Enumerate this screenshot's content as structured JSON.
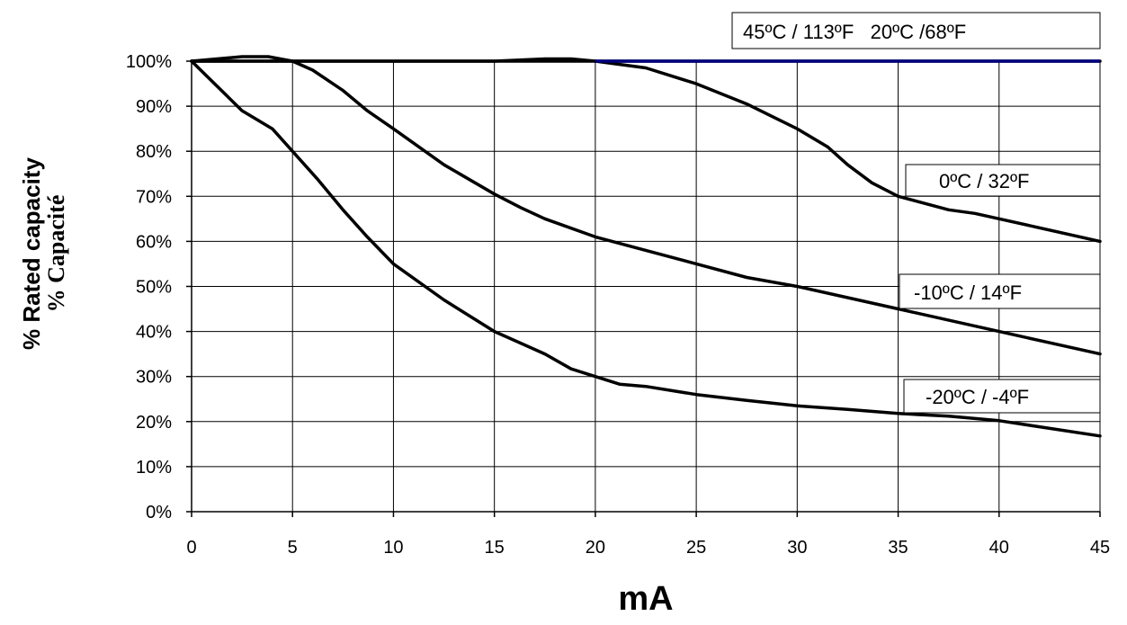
{
  "chart_data": {
    "type": "line",
    "xlabel": "mA",
    "ylabel": [
      "% Rated capacity",
      "% Capacité"
    ],
    "xlim": [
      0,
      45
    ],
    "ylim": [
      0,
      100
    ],
    "x_ticks": [
      0,
      5,
      10,
      15,
      20,
      25,
      30,
      35,
      40,
      45
    ],
    "y_ticks": [
      "0%",
      "10%",
      "20%",
      "30%",
      "40%",
      "50%",
      "60%",
      "70%",
      "80%",
      "90%",
      "100%"
    ],
    "grid": true,
    "series": [
      {
        "name": "45ºC / 113ºF   20ºC /68ºF",
        "color": "#000080",
        "points": [
          [
            0,
            100
          ],
          [
            2.5,
            101
          ],
          [
            3.8,
            101
          ],
          [
            5,
            100
          ],
          [
            10,
            100
          ],
          [
            15,
            100
          ],
          [
            17.5,
            100.5
          ],
          [
            18.8,
            100.5
          ],
          [
            20,
            100
          ],
          [
            45,
            100
          ]
        ]
      },
      {
        "name": "0ºC / 32ºF",
        "color": "#000000",
        "points": [
          [
            0,
            100
          ],
          [
            5,
            100
          ],
          [
            20,
            100
          ],
          [
            22.5,
            98.5
          ],
          [
            25,
            95
          ],
          [
            27.5,
            90.5
          ],
          [
            30,
            85
          ],
          [
            31.5,
            81
          ],
          [
            32.5,
            77
          ],
          [
            33.7,
            73
          ],
          [
            35,
            70
          ],
          [
            37.5,
            67
          ],
          [
            38.8,
            66.2
          ],
          [
            40,
            65
          ],
          [
            45,
            60
          ]
        ]
      },
      {
        "name": "-10ºC / 14ºF",
        "color": "#000000",
        "points": [
          [
            0,
            100
          ],
          [
            5,
            100
          ],
          [
            6,
            98
          ],
          [
            7.5,
            93.5
          ],
          [
            8.7,
            89
          ],
          [
            10,
            85
          ],
          [
            12.5,
            77
          ],
          [
            15,
            70.5
          ],
          [
            16.3,
            67.5
          ],
          [
            17.5,
            65
          ],
          [
            20,
            61
          ],
          [
            22.5,
            58
          ],
          [
            25,
            55
          ],
          [
            27.5,
            52
          ],
          [
            30,
            50
          ],
          [
            35,
            45
          ],
          [
            40,
            40
          ],
          [
            45,
            35
          ]
        ]
      },
      {
        "name": "-20ºC / -4ºF",
        "color": "#000000",
        "points": [
          [
            0,
            100
          ],
          [
            2.5,
            89
          ],
          [
            4,
            85
          ],
          [
            5,
            80
          ],
          [
            6.2,
            74
          ],
          [
            7.5,
            67
          ],
          [
            8.7,
            61
          ],
          [
            10,
            55
          ],
          [
            12.5,
            47
          ],
          [
            15,
            40
          ],
          [
            17.5,
            35
          ],
          [
            18.8,
            31.7
          ],
          [
            20,
            30
          ],
          [
            21.2,
            28.3
          ],
          [
            22.5,
            27.8
          ],
          [
            25,
            26
          ],
          [
            27.5,
            24.7
          ],
          [
            30,
            23.5
          ],
          [
            32.5,
            22.7
          ],
          [
            35,
            21.8
          ],
          [
            37.5,
            21.2
          ],
          [
            40,
            20.2
          ],
          [
            45,
            16.8
          ]
        ]
      }
    ]
  }
}
